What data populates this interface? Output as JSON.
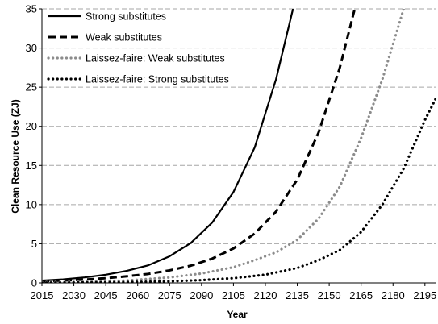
{
  "chart_data": {
    "type": "line",
    "title": "",
    "xlabel": "Year",
    "ylabel": "Clean Resource Use (ZJ)",
    "xlim": [
      2015,
      2200
    ],
    "ylim": [
      0,
      35
    ],
    "xticks": [
      2015,
      2030,
      2045,
      2060,
      2075,
      2090,
      2105,
      2120,
      2135,
      2150,
      2165,
      2180,
      2195
    ],
    "yticks": [
      0,
      5,
      10,
      15,
      20,
      25,
      30,
      35
    ],
    "grid": "horizontal dashed",
    "legend_position": "top-left",
    "series": [
      {
        "name": "Strong substitutes",
        "style": "solid",
        "color": "#000000",
        "x": [
          2015,
          2025,
          2035,
          2045,
          2055,
          2065,
          2075,
          2085,
          2095,
          2105,
          2115,
          2125,
          2133
        ],
        "y": [
          0.3,
          0.45,
          0.7,
          1.05,
          1.55,
          2.25,
          3.4,
          5.1,
          7.7,
          11.6,
          17.3,
          26.0,
          35.0
        ]
      },
      {
        "name": "Weak substitutes",
        "style": "dashed",
        "color": "#000000",
        "x": [
          2015,
          2025,
          2035,
          2045,
          2055,
          2065,
          2075,
          2085,
          2095,
          2105,
          2115,
          2125,
          2135,
          2145,
          2155,
          2162
        ],
        "y": [
          0.2,
          0.3,
          0.42,
          0.6,
          0.85,
          1.15,
          1.6,
          2.2,
          3.1,
          4.4,
          6.3,
          9.1,
          13.2,
          19.2,
          27.5,
          35.0
        ]
      },
      {
        "name": "Laissez-faire: Weak substitutes",
        "style": "dotted",
        "color": "#8c8c8c",
        "x": [
          2015,
          2035,
          2055,
          2075,
          2090,
          2105,
          2115,
          2125,
          2135,
          2145,
          2155,
          2165,
          2175,
          2185
        ],
        "y": [
          0.08,
          0.15,
          0.3,
          0.7,
          1.2,
          2.0,
          2.9,
          3.9,
          5.5,
          8.2,
          12.3,
          18.5,
          26.0,
          35.0
        ]
      },
      {
        "name": "Laissez-faire: Strong substitutes",
        "style": "dotted",
        "color": "#000000",
        "x": [
          2015,
          2050,
          2075,
          2090,
          2105,
          2120,
          2135,
          2145,
          2155,
          2165,
          2175,
          2185,
          2195,
          2200
        ],
        "y": [
          0.02,
          0.08,
          0.2,
          0.35,
          0.6,
          1.05,
          1.9,
          2.9,
          4.2,
          6.5,
          10.0,
          14.6,
          20.8,
          23.5
        ]
      }
    ]
  }
}
